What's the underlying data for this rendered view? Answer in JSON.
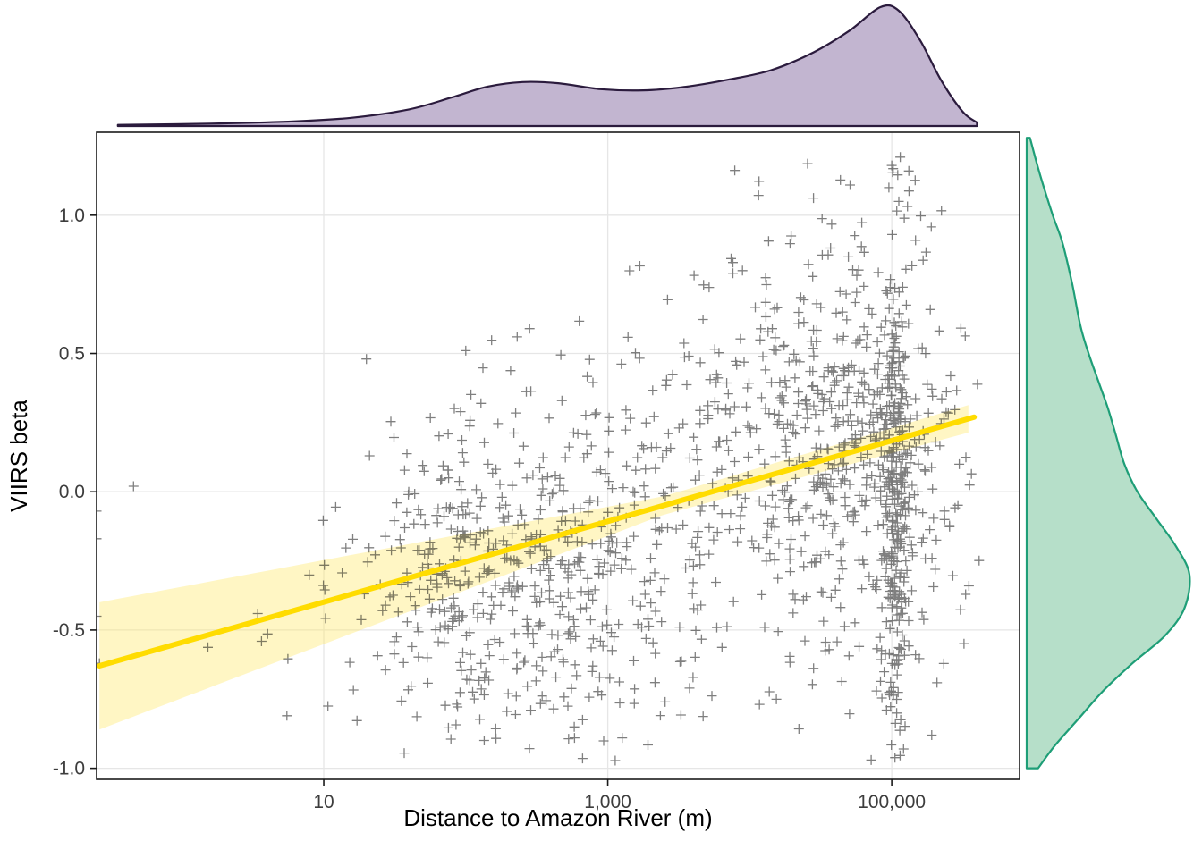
{
  "chart_data": {
    "type": "scatter",
    "title": "",
    "xlabel": "Distance to Amazon River (m)",
    "ylabel": "VIIRS beta",
    "x_scale": "log10",
    "xlim_log10": [
      -0.6,
      5.9
    ],
    "ylim": [
      -1.04,
      1.3
    ],
    "x_ticks": [
      {
        "value": 10,
        "label": "10"
      },
      {
        "value": 1000,
        "label": "1,000"
      },
      {
        "value": 100000,
        "label": "100,000"
      }
    ],
    "y_ticks": [
      {
        "value": -1.0,
        "label": "-1.0"
      },
      {
        "value": -0.5,
        "label": "-0.5"
      },
      {
        "value": 0.0,
        "label": "0.0"
      },
      {
        "value": 0.5,
        "label": "0.5"
      },
      {
        "value": 1.0,
        "label": "1.0"
      }
    ],
    "style": {
      "background": "#FFFFFF",
      "panel_bg": "#FFFFFF",
      "grid_color": "#E6E6E6",
      "border_color": "#1A1A1A",
      "tick_color": "#1A1A1A",
      "tick_label_color": "#3D3D3D",
      "axis_label_color": "#000000"
    },
    "points_style": {
      "shape": "plus",
      "color": "#000000",
      "opacity": 0.5,
      "half_size_px": 5.5,
      "stroke_width": 1.3
    },
    "n_points_approx": 1500,
    "seed": 20240613,
    "scatter_clusters": [
      {
        "n": 10,
        "x": 0.9,
        "xsd": 0.4,
        "y": -0.55,
        "ysd": 0.2
      },
      {
        "n": 60,
        "x": 1.7,
        "xsd": 0.28,
        "y": -0.35,
        "ysd": 0.28
      },
      {
        "n": 340,
        "x": 2.2,
        "xsd": 0.42,
        "y": -0.3,
        "ysd": 0.3
      },
      {
        "n": 220,
        "x": 3.1,
        "xsd": 0.42,
        "y": -0.12,
        "ysd": 0.36
      },
      {
        "n": 310,
        "x": 4.3,
        "xsd": 0.42,
        "y": 0.15,
        "ysd": 0.4
      },
      {
        "n": 210,
        "x": 4.7,
        "xsd": 0.28,
        "y": 0.22,
        "ysd": 0.4
      },
      {
        "n": 300,
        "x": 5.02,
        "xsd": 0.06,
        "y": -0.02,
        "ysd": 0.42
      },
      {
        "n": 80,
        "x": 5.3,
        "xsd": 0.15,
        "y": 0.1,
        "ysd": 0.45
      }
    ],
    "extra_points": [
      [
        -0.34,
        0.02
      ],
      [
        -0.6,
        -0.07
      ],
      [
        -0.6,
        -0.17
      ],
      [
        -0.6,
        -0.45
      ],
      [
        -0.58,
        -0.62
      ],
      [
        0.74,
        -0.81
      ],
      [
        1.3,
        0.48
      ],
      [
        2.0,
        0.51
      ],
      [
        2.45,
        0.59
      ],
      [
        5.0,
        1.18
      ],
      [
        5.06,
        1.21
      ],
      [
        5.12,
        1.16
      ],
      [
        4.98,
        1.1
      ],
      [
        5.05,
        1.05
      ]
    ],
    "regression": {
      "model": "y = intercept + slope * log10(x)",
      "intercept": -0.545,
      "slope": 0.146,
      "domain_log10": [
        -0.58,
        5.58
      ],
      "line_color": "#FFDC00",
      "line_width": 6,
      "ci_color": "#FFE863",
      "ci_opacity": 0.38,
      "ci": {
        "base": 0.033,
        "pivot": 3.4,
        "left_rate": 0.0495,
        "right_rate": 0.0078
      }
    },
    "marginal_top": {
      "label": "density-of-log10-distance",
      "fill": "#B7A8C8",
      "fill_opacity": 0.85,
      "stroke": "#2B1B3D",
      "stroke_width": 2.2,
      "points": [
        [
          -0.45,
          0.01
        ],
        [
          0.2,
          0.02
        ],
        [
          0.8,
          0.04
        ],
        [
          1.2,
          0.07
        ],
        [
          1.6,
          0.14
        ],
        [
          1.9,
          0.24
        ],
        [
          2.15,
          0.33
        ],
        [
          2.4,
          0.37
        ],
        [
          2.65,
          0.36
        ],
        [
          2.95,
          0.31
        ],
        [
          3.25,
          0.3
        ],
        [
          3.55,
          0.33
        ],
        [
          3.85,
          0.39
        ],
        [
          4.15,
          0.47
        ],
        [
          4.45,
          0.62
        ],
        [
          4.7,
          0.8
        ],
        [
          4.92,
          1.0
        ],
        [
          5.05,
          0.97
        ],
        [
          5.2,
          0.72
        ],
        [
          5.35,
          0.38
        ],
        [
          5.5,
          0.12
        ],
        [
          5.6,
          0.03
        ]
      ]
    },
    "marginal_right": {
      "label": "density-of-viirs-beta",
      "fill": "#AEDCC3",
      "fill_opacity": 0.9,
      "stroke": "#1E9E77",
      "stroke_width": 2.2,
      "points": [
        [
          1.28,
          0.02
        ],
        [
          1.15,
          0.08
        ],
        [
          1.0,
          0.16
        ],
        [
          0.9,
          0.22
        ],
        [
          0.75,
          0.28
        ],
        [
          0.6,
          0.33
        ],
        [
          0.5,
          0.38
        ],
        [
          0.4,
          0.44
        ],
        [
          0.3,
          0.5
        ],
        [
          0.2,
          0.55
        ],
        [
          0.1,
          0.6
        ],
        [
          0.0,
          0.68
        ],
        [
          -0.1,
          0.8
        ],
        [
          -0.2,
          0.92
        ],
        [
          -0.3,
          1.0
        ],
        [
          -0.42,
          0.97
        ],
        [
          -0.52,
          0.85
        ],
        [
          -0.62,
          0.65
        ],
        [
          -0.72,
          0.47
        ],
        [
          -0.82,
          0.32
        ],
        [
          -0.92,
          0.17
        ],
        [
          -1.0,
          0.07
        ]
      ]
    }
  }
}
